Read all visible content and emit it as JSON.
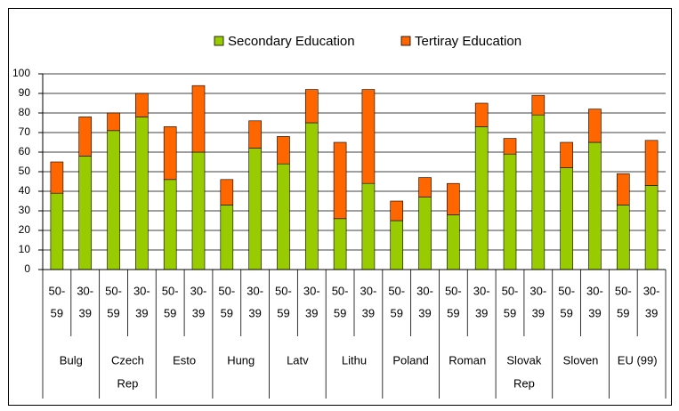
{
  "chart_data": {
    "type": "stacked_bar",
    "categories": [
      [
        "50-",
        "59"
      ],
      [
        "30-",
        "39"
      ],
      [
        "50-",
        "59"
      ],
      [
        "30-",
        "39"
      ],
      [
        "50-",
        "59"
      ],
      [
        "30-",
        "39"
      ],
      [
        "50-",
        "59"
      ],
      [
        "30-",
        "39"
      ],
      [
        "50-",
        "59"
      ],
      [
        "30-",
        "39"
      ],
      [
        "50-",
        "59"
      ],
      [
        "30-",
        "39"
      ],
      [
        "50-",
        "59"
      ],
      [
        "30-",
        "39"
      ],
      [
        "50-",
        "59"
      ],
      [
        "30-",
        "39"
      ],
      [
        "50-",
        "59"
      ],
      [
        "30-",
        "39"
      ],
      [
        "50-",
        "59"
      ],
      [
        "30-",
        "39"
      ],
      [
        "50-",
        "59"
      ],
      [
        "30-",
        "39"
      ]
    ],
    "groups": [
      [
        "Bulg"
      ],
      [
        "Czech",
        "Rep"
      ],
      [
        "Esto"
      ],
      [
        "Hung"
      ],
      [
        "Latv"
      ],
      [
        "Lithu"
      ],
      [
        "Poland"
      ],
      [
        "Roman"
      ],
      [
        "Slovak",
        "Rep"
      ],
      [
        "Sloven"
      ],
      [
        "EU (99)"
      ]
    ],
    "series": [
      {
        "name": "Secondary Education",
        "color": "#99cc00",
        "values": [
          39,
          58,
          71,
          78,
          46,
          60,
          33,
          62,
          54,
          75,
          26,
          44,
          25,
          37,
          28,
          73,
          59,
          79,
          52,
          65,
          33,
          43
        ]
      },
      {
        "name": "Tertiray Education",
        "color": "#ff6600",
        "values": [
          16,
          20,
          9,
          12,
          27,
          34,
          13,
          14,
          14,
          17,
          39,
          48,
          10,
          10,
          16,
          12,
          8,
          10,
          13,
          17,
          16,
          23
        ]
      }
    ],
    "ylim": [
      0,
      100
    ],
    "yticks": [
      0,
      10,
      20,
      30,
      40,
      50,
      60,
      70,
      80,
      90,
      100
    ],
    "grid": true,
    "legend": "top"
  }
}
